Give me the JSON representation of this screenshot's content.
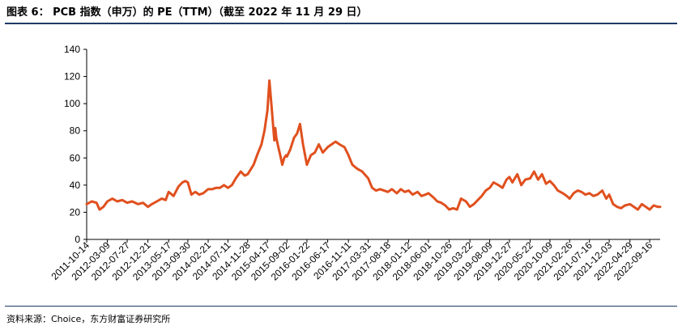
{
  "figure_title": "图表 6： PCB 指数（申万）的 PE（TTM）（截至 2022 年 11 月 29 日）",
  "source": "资料来源：Choice，东方财富证券研究所",
  "colors": {
    "line": "#e0501e",
    "rule": "#1f3a66",
    "axis": "#000000"
  },
  "chart_data": {
    "type": "line",
    "title": "PCB 指数（申万）的 PE（TTM）",
    "xlabel": "",
    "ylabel": "",
    "ylim": [
      0,
      140
    ],
    "yticks": [
      0,
      20,
      40,
      60,
      80,
      100,
      120,
      140
    ],
    "grid": false,
    "legend": "none",
    "xticks": [
      "2011-10-14",
      "2012-03-09",
      "2012-07-27",
      "2012-12-21",
      "2013-05-17",
      "2013-09-30",
      "2014-02-21",
      "2014-07-11",
      "2014-11-28",
      "2015-04-17",
      "2015-09-02",
      "2016-01-22",
      "2016-06-17",
      "2016-11-11",
      "2017-03-31",
      "2017-08-18",
      "2018-01-12",
      "2018-06-01",
      "2018-10-26",
      "2019-03-22",
      "2019-08-09",
      "2019-12-27",
      "2020-05-22",
      "2020-10-09",
      "2021-02-26",
      "2021-07-16",
      "2021-12-03",
      "2022-04-29",
      "2022-09-16"
    ],
    "series": [
      {
        "name": "",
        "x": [
          "2011-10-14",
          "2011-11-18",
          "2011-12-23",
          "2012-01-13",
          "2012-02-10",
          "2012-03-09",
          "2012-04-13",
          "2012-05-18",
          "2012-06-22",
          "2012-07-27",
          "2012-08-31",
          "2012-10-12",
          "2012-11-16",
          "2012-12-21",
          "2013-01-18",
          "2013-02-22",
          "2013-03-29",
          "2013-04-26",
          "2013-05-17",
          "2013-06-21",
          "2013-07-26",
          "2013-08-23",
          "2013-09-13",
          "2013-09-30",
          "2013-10-25",
          "2013-11-22",
          "2013-12-20",
          "2014-01-17",
          "2014-02-21",
          "2014-03-21",
          "2014-04-18",
          "2014-05-16",
          "2014-06-13",
          "2014-07-11",
          "2014-08-08",
          "2014-09-05",
          "2014-10-10",
          "2014-11-07",
          "2014-11-28",
          "2015-01-09",
          "2015-02-06",
          "2015-03-06",
          "2015-03-27",
          "2015-04-17",
          "2015-05-01",
          "2015-05-15",
          "2015-06-05",
          "2015-06-12",
          "2015-06-19",
          "2015-07-03",
          "2015-07-17",
          "2015-07-31",
          "2015-08-14",
          "2015-08-28",
          "2015-09-02",
          "2015-09-25",
          "2015-10-23",
          "2015-11-13",
          "2015-12-04",
          "2015-12-25",
          "2016-01-22",
          "2016-02-19",
          "2016-03-18",
          "2016-04-15",
          "2016-05-13",
          "2016-06-17",
          "2016-07-15",
          "2016-08-12",
          "2016-09-09",
          "2016-10-14",
          "2016-11-11",
          "2016-12-09",
          "2017-01-13",
          "2017-02-17",
          "2017-03-31",
          "2017-04-28",
          "2017-05-26",
          "2017-06-23",
          "2017-07-21",
          "2017-08-18",
          "2017-09-15",
          "2017-10-20",
          "2017-11-17",
          "2017-12-15",
          "2018-01-12",
          "2018-02-09",
          "2018-03-16",
          "2018-04-13",
          "2018-05-11",
          "2018-06-01",
          "2018-07-06",
          "2018-08-03",
          "2018-08-31",
          "2018-09-28",
          "2018-10-26",
          "2018-11-23",
          "2018-12-21",
          "2019-01-18",
          "2019-02-22",
          "2019-03-22",
          "2019-04-19",
          "2019-05-17",
          "2019-06-14",
          "2019-07-12",
          "2019-08-09",
          "2019-09-06",
          "2019-10-11",
          "2019-11-08",
          "2019-12-06",
          "2019-12-27",
          "2020-01-17",
          "2020-02-21",
          "2020-03-20",
          "2020-04-17",
          "2020-05-22",
          "2020-06-19",
          "2020-07-17",
          "2020-08-14",
          "2020-09-11",
          "2020-10-09",
          "2020-11-06",
          "2020-12-04",
          "2021-01-08",
          "2021-02-05",
          "2021-02-26",
          "2021-03-26",
          "2021-04-23",
          "2021-05-21",
          "2021-06-18",
          "2021-07-16",
          "2021-08-13",
          "2021-09-10",
          "2021-10-15",
          "2021-11-12",
          "2021-12-03",
          "2021-12-31",
          "2022-01-28",
          "2022-02-25",
          "2022-03-25",
          "2022-04-29",
          "2022-05-27",
          "2022-06-24",
          "2022-07-22",
          "2022-08-19",
          "2022-09-16",
          "2022-10-14",
          "2022-11-11",
          "2022-11-29"
        ],
        "values": [
          26,
          28,
          27,
          22,
          24,
          28,
          30,
          28,
          29,
          27,
          28,
          26,
          27,
          24,
          26,
          28,
          30,
          29,
          35,
          32,
          39,
          42,
          43,
          42,
          33,
          35,
          33,
          34,
          37,
          37,
          38,
          38,
          40,
          38,
          40,
          45,
          50,
          47,
          48,
          55,
          63,
          70,
          80,
          95,
          117,
          100,
          73,
          82,
          75,
          68,
          62,
          55,
          60,
          62,
          61,
          66,
          75,
          78,
          85,
          70,
          55,
          62,
          64,
          70,
          64,
          68,
          70,
          72,
          70,
          68,
          62,
          55,
          52,
          50,
          45,
          38,
          36,
          37,
          36,
          35,
          37,
          34,
          37,
          35,
          36,
          33,
          35,
          32,
          33,
          34,
          31,
          28,
          27,
          25,
          22,
          23,
          22,
          30,
          28,
          24,
          26,
          29,
          32,
          36,
          38,
          42,
          40,
          38,
          44,
          46,
          42,
          48,
          40,
          44,
          45,
          50,
          44,
          48,
          41,
          43,
          40,
          36,
          34,
          32,
          30,
          34,
          36,
          35,
          33,
          34,
          32,
          33,
          36,
          30,
          33,
          26,
          24,
          23,
          25,
          26,
          24,
          22,
          26,
          24,
          22,
          25,
          24,
          24
        ]
      }
    ]
  }
}
